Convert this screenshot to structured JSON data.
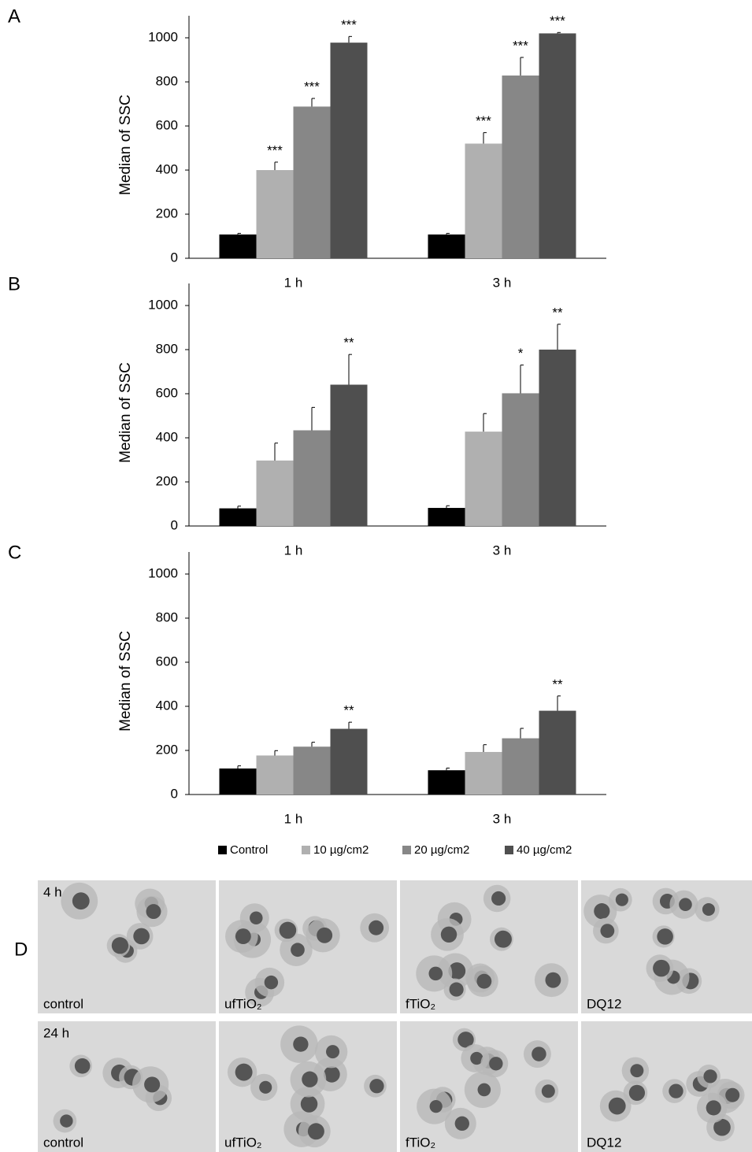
{
  "chart_data": [
    {
      "type": "bar",
      "label": "A",
      "ylabel": "Median of SSC",
      "categories": [
        "1 h",
        "3 h"
      ],
      "ylim": [
        0,
        1100
      ],
      "yticks": [
        0,
        200,
        400,
        600,
        800,
        1000
      ],
      "series": [
        {
          "name": "Control",
          "color": "#000000",
          "values": [
            108,
            108
          ],
          "errors": [
            5,
            5
          ],
          "annotations": [
            null,
            null
          ]
        },
        {
          "name": "10 µg/cm2",
          "color": "#b0b0b0",
          "values": [
            400,
            520
          ],
          "errors": [
            36,
            50
          ],
          "annotations": [
            "***",
            "***"
          ]
        },
        {
          "name": "20 µg/cm2",
          "color": "#878787",
          "values": [
            688,
            829
          ],
          "errors": [
            37,
            82
          ],
          "annotations": [
            "***",
            "***"
          ]
        },
        {
          "name": "40 µg/cm2",
          "color": "#4f4f4f",
          "values": [
            978,
            1020
          ],
          "errors": [
            28,
            4
          ],
          "annotations": [
            "***",
            "***"
          ]
        }
      ]
    },
    {
      "type": "bar",
      "label": "B",
      "ylabel": "Median of SSC",
      "categories": [
        "1 h",
        "3 h"
      ],
      "ylim": [
        0,
        1100
      ],
      "yticks": [
        0,
        200,
        400,
        600,
        800,
        1000
      ],
      "series": [
        {
          "name": "Control",
          "color": "#000000",
          "values": [
            80,
            82
          ],
          "errors": [
            10,
            10
          ],
          "annotations": [
            null,
            null
          ]
        },
        {
          "name": "10 µg/cm2",
          "color": "#b0b0b0",
          "values": [
            297,
            428
          ],
          "errors": [
            79,
            82
          ],
          "annotations": [
            null,
            null
          ]
        },
        {
          "name": "20 µg/cm2",
          "color": "#878787",
          "values": [
            434,
            602
          ],
          "errors": [
            104,
            128
          ],
          "annotations": [
            null,
            "*"
          ]
        },
        {
          "name": "40 µg/cm2",
          "color": "#4f4f4f",
          "values": [
            641,
            800
          ],
          "errors": [
            137,
            115
          ],
          "annotations": [
            "**",
            "**"
          ]
        }
      ]
    },
    {
      "type": "bar",
      "label": "C",
      "ylabel": "Median of SSC",
      "categories": [
        "1 h",
        "3 h"
      ],
      "ylim": [
        0,
        1100
      ],
      "yticks": [
        0,
        200,
        400,
        600,
        800,
        1000
      ],
      "series": [
        {
          "name": "Control",
          "color": "#000000",
          "values": [
            118,
            110
          ],
          "errors": [
            12,
            10
          ],
          "annotations": [
            null,
            null
          ]
        },
        {
          "name": "10 µg/cm2",
          "color": "#b0b0b0",
          "values": [
            177,
            193
          ],
          "errors": [
            22,
            33
          ],
          "annotations": [
            null,
            null
          ]
        },
        {
          "name": "20 µg/cm2",
          "color": "#878787",
          "values": [
            217,
            255
          ],
          "errors": [
            20,
            45
          ],
          "annotations": [
            null,
            null
          ]
        },
        {
          "name": "40 µg/cm2",
          "color": "#4f4f4f",
          "values": [
            298,
            380
          ],
          "errors": [
            30,
            67
          ],
          "annotations": [
            "**",
            "**"
          ]
        }
      ]
    }
  ],
  "panel_d": {
    "label": "D",
    "rows": [
      {
        "time": "4 h",
        "labels": [
          "control",
          "ufTiO₂",
          "fTiO₂",
          "DQ12"
        ]
      },
      {
        "time": "24 h",
        "labels": [
          "control",
          "ufTiO₂",
          "fTiO₂",
          "DQ12"
        ]
      }
    ]
  }
}
